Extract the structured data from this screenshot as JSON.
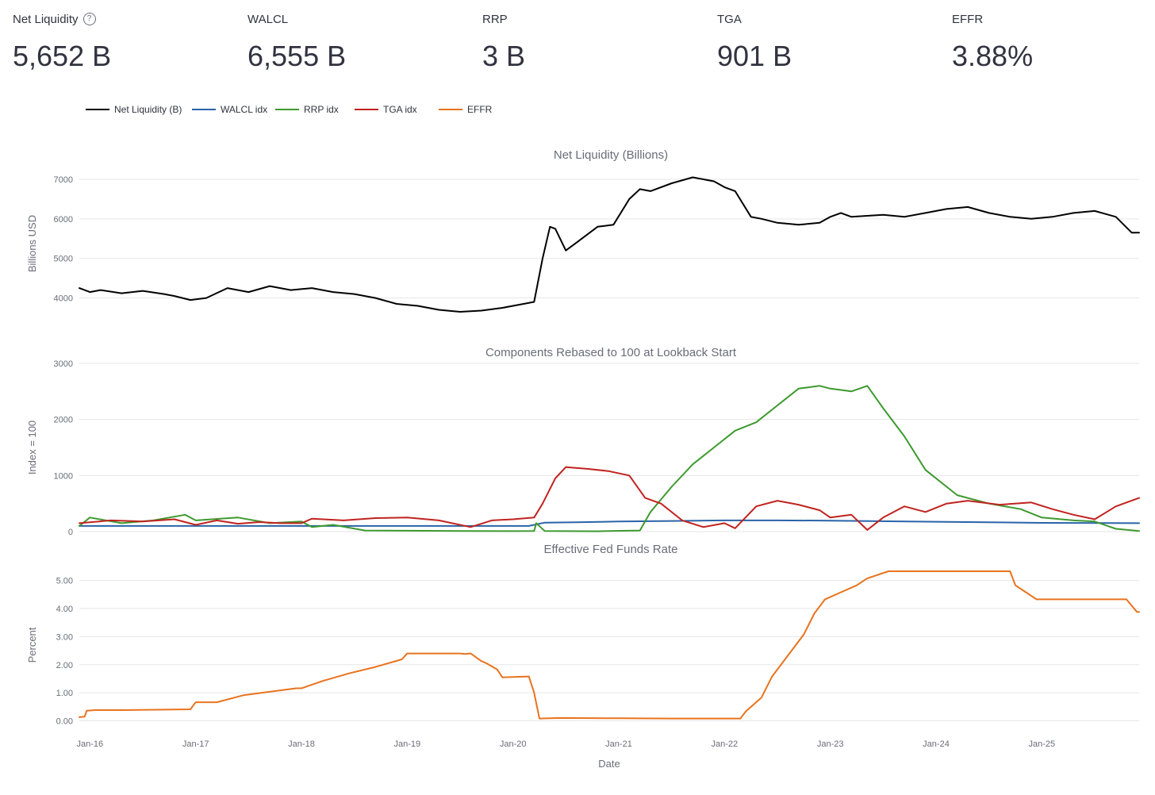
{
  "metrics": [
    {
      "label": "Net Liquidity",
      "value": "5,652 B",
      "help_icon": "help-circle-icon"
    },
    {
      "label": "WALCL",
      "value": "6,555 B"
    },
    {
      "label": "RRP",
      "value": "3 B"
    },
    {
      "label": "TGA",
      "value": "901 B"
    },
    {
      "label": "EFFR",
      "value": "3.88%"
    }
  ],
  "colors": {
    "net_liquidity": "#000000",
    "walcl": "#2a63a8",
    "rrp": "#3d9a2e",
    "tga": "#c0231f",
    "effr": "#e8731e",
    "grid": "#e6e6e6"
  },
  "chart_data": {
    "type": "line",
    "legend": [
      "Net Liquidity (B)",
      "WALCL idx",
      "RRP idx",
      "TGA idx",
      "EFFR"
    ],
    "legend_position": "top-left",
    "xlabel": "Date",
    "x_ticks": [
      "Jan-16",
      "Jan-17",
      "Jan-18",
      "Jan-19",
      "Jan-20",
      "Jan-21",
      "Jan-22",
      "Jan-23",
      "Jan-24",
      "Jan-25"
    ],
    "x_range": [
      2015.9,
      2025.92
    ],
    "panels": [
      {
        "title": "Net Liquidity (Billions)",
        "ylabel": "Billions USD",
        "ylim": [
          3550,
          7200
        ],
        "yticks": [
          4000,
          5000,
          6000,
          7000
        ],
        "ytick_labels": [
          "4000",
          "5000",
          "6000",
          "7000"
        ],
        "series": [
          {
            "name": "Net Liquidity (B)",
            "key": "net_liquidity",
            "x": [
              2015.9,
              2016.0,
              2016.1,
              2016.3,
              2016.5,
              2016.7,
              2016.8,
              2016.95,
              2017.1,
              2017.3,
              2017.5,
              2017.7,
              2017.9,
              2018.1,
              2018.3,
              2018.5,
              2018.7,
              2018.9,
              2019.1,
              2019.3,
              2019.5,
              2019.7,
              2019.9,
              2020.1,
              2020.2,
              2020.28,
              2020.35,
              2020.4,
              2020.5,
              2020.6,
              2020.7,
              2020.8,
              2020.95,
              2021.1,
              2021.2,
              2021.3,
              2021.5,
              2021.7,
              2021.9,
              2022.0,
              2022.1,
              2022.25,
              2022.35,
              2022.5,
              2022.7,
              2022.9,
              2023.0,
              2023.1,
              2023.2,
              2023.5,
              2023.7,
              2023.9,
              2024.1,
              2024.3,
              2024.5,
              2024.7,
              2024.9,
              2025.1,
              2025.3,
              2025.5,
              2025.7,
              2025.85,
              2025.92
            ],
            "y": [
              4250,
              4150,
              4200,
              4120,
              4180,
              4100,
              4050,
              3950,
              4000,
              4250,
              4150,
              4300,
              4200,
              4250,
              4150,
              4100,
              4000,
              3850,
              3800,
              3700,
              3650,
              3680,
              3750,
              3850,
              3900,
              5000,
              5800,
              5750,
              5200,
              5400,
              5600,
              5800,
              5850,
              6500,
              6750,
              6700,
              6900,
              7050,
              6950,
              6800,
              6700,
              6050,
              6000,
              5900,
              5850,
              5900,
              6050,
              6150,
              6050,
              6100,
              6050,
              6150,
              6250,
              6300,
              6150,
              6050,
              6000,
              6050,
              6150,
              6200,
              6050,
              5650,
              5652
            ]
          }
        ]
      },
      {
        "title": "Components Rebased to 100 at Lookback Start",
        "ylabel": "Index = 100",
        "ylim": [
          0,
          3000
        ],
        "yticks": [
          0,
          1000,
          2000,
          3000
        ],
        "ytick_labels": [
          "0",
          "1000",
          "2000",
          "3000"
        ],
        "series": [
          {
            "name": "WALCL idx",
            "key": "walcl",
            "x": [
              2015.9,
              2020.15,
              2020.3,
              2020.6,
              2021.0,
              2021.5,
              2022.0,
              2022.5,
              2023.0,
              2024.0,
              2025.0,
              2025.92
            ],
            "y": [
              100,
              100,
              160,
              165,
              180,
              190,
              200,
              200,
              195,
              175,
              155,
              150
            ]
          },
          {
            "name": "RRP idx",
            "key": "rrp",
            "x": [
              2015.9,
              2016.0,
              2016.3,
              2016.6,
              2016.9,
              2017.0,
              2017.4,
              2017.7,
              2018.0,
              2018.1,
              2018.3,
              2018.6,
              2019.0,
              2019.5,
              2020.0,
              2020.2,
              2020.22,
              2020.3,
              2020.8,
              2021.2,
              2021.3,
              2021.5,
              2021.7,
              2021.9,
              2022.1,
              2022.3,
              2022.5,
              2022.7,
              2022.9,
              2023.0,
              2023.2,
              2023.35,
              2023.5,
              2023.7,
              2023.9,
              2024.2,
              2024.5,
              2024.8,
              2025.0,
              2025.3,
              2025.5,
              2025.7,
              2025.92
            ],
            "y": [
              100,
              250,
              150,
              200,
              300,
              200,
              250,
              150,
              180,
              80,
              120,
              20,
              15,
              10,
              8,
              10,
              150,
              10,
              5,
              20,
              350,
              800,
              1200,
              1500,
              1800,
              1950,
              2250,
              2550,
              2600,
              2550,
              2500,
              2600,
              2200,
              1700,
              1100,
              650,
              500,
              400,
              250,
              200,
              180,
              50,
              10
            ]
          },
          {
            "name": "TGA idx",
            "key": "tga",
            "x": [
              2015.9,
              2016.2,
              2016.5,
              2016.8,
              2017.0,
              2017.2,
              2017.4,
              2017.6,
              2017.8,
              2018.0,
              2018.1,
              2018.4,
              2018.7,
              2019.0,
              2019.3,
              2019.6,
              2019.8,
              2020.0,
              2020.2,
              2020.28,
              2020.4,
              2020.5,
              2020.7,
              2020.9,
              2021.1,
              2021.25,
              2021.4,
              2021.6,
              2021.8,
              2022.0,
              2022.1,
              2022.3,
              2022.5,
              2022.7,
              2022.9,
              2023.0,
              2023.2,
              2023.35,
              2023.5,
              2023.7,
              2023.9,
              2024.1,
              2024.3,
              2024.6,
              2024.9,
              2025.1,
              2025.3,
              2025.5,
              2025.7,
              2025.92
            ],
            "y": [
              150,
              200,
              180,
              220,
              120,
              200,
              140,
              170,
              150,
              150,
              230,
              200,
              240,
              250,
              200,
              80,
              200,
              220,
              250,
              500,
              950,
              1150,
              1120,
              1080,
              1000,
              600,
              500,
              200,
              80,
              150,
              60,
              450,
              550,
              480,
              380,
              250,
              300,
              30,
              250,
              450,
              350,
              500,
              550,
              480,
              520,
              400,
              300,
              220,
              450,
              600
            ]
          }
        ]
      },
      {
        "title": "Effective Fed Funds Rate",
        "ylabel": "Percent",
        "ylim": [
          -0.1,
          5.5
        ],
        "yticks": [
          0,
          1,
          2,
          3,
          4,
          5
        ],
        "ytick_labels": [
          "0.00",
          "1.00",
          "2.00",
          "3.00",
          "4.00",
          "5.00"
        ],
        "series": [
          {
            "name": "EFFR",
            "key": "effr",
            "x": [
              2015.9,
              2015.95,
              2015.97,
              2016.05,
              2016.3,
              2016.95,
              2017.0,
              2017.2,
              2017.45,
              2017.95,
              2018.0,
              2018.2,
              2018.45,
              2018.7,
              2018.95,
              2019.0,
              2019.5,
              2019.55,
              2019.6,
              2019.7,
              2019.75,
              2019.85,
              2019.9,
              2020.15,
              2020.2,
              2020.25,
              2020.45,
              2021.0,
              2021.5,
              2022.0,
              2022.15,
              2022.2,
              2022.35,
              2022.45,
              2022.6,
              2022.75,
              2022.85,
              2022.95,
              2023.1,
              2023.25,
              2023.35,
              2023.55,
              2023.8,
              2024.0,
              2024.5,
              2024.7,
              2024.75,
              2024.85,
              2024.95,
              2025.0,
              2025.5,
              2025.8,
              2025.85,
              2025.9,
              2025.92
            ],
            "y": [
              0.13,
              0.15,
              0.36,
              0.38,
              0.38,
              0.41,
              0.66,
              0.66,
              0.91,
              1.16,
              1.16,
              1.42,
              1.69,
              1.92,
              2.19,
              2.4,
              2.4,
              2.38,
              2.4,
              2.13,
              2.05,
              1.83,
              1.55,
              1.58,
              1.0,
              0.08,
              0.1,
              0.09,
              0.08,
              0.08,
              0.08,
              0.33,
              0.83,
              1.58,
              2.33,
              3.08,
              3.83,
              4.33,
              4.58,
              4.83,
              5.08,
              5.33,
              5.33,
              5.33,
              5.33,
              5.33,
              4.83,
              4.58,
              4.33,
              4.33,
              4.33,
              4.33,
              4.1,
              3.88,
              3.88
            ]
          }
        ]
      }
    ]
  }
}
